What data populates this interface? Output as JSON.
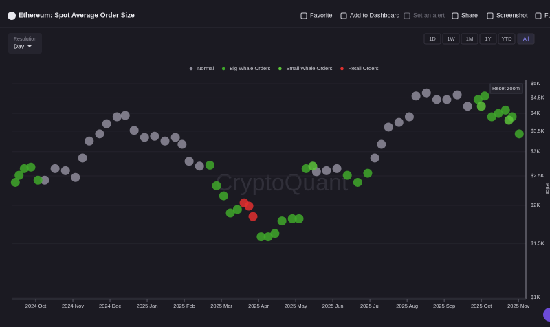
{
  "header": {
    "title": "Ethereum: Spot Average Order Size",
    "actions": [
      "Favorite",
      "Add to Dashboard",
      "Set an alert",
      "Share",
      "Screenshot",
      "Fu"
    ]
  },
  "controls": {
    "resolution_label": "Resolution",
    "resolution": "Day",
    "ranges": [
      "1D",
      "1W",
      "1M",
      "1Y",
      "YTD",
      "All"
    ],
    "active_range": "All",
    "reset_zoom": "Reset zoom"
  },
  "chart_data": {
    "type": "scatter",
    "watermark": "CryptoQuant",
    "y_label": "Price",
    "log_scale": true,
    "xlim": [
      -0.63,
      13.2
    ],
    "xticks": [
      {
        "value": 0,
        "label": "2024 Oct"
      },
      {
        "value": 1,
        "label": "2024 Nov"
      },
      {
        "value": 2,
        "label": "2024 Dec"
      },
      {
        "value": 3,
        "label": "2025 Jan"
      },
      {
        "value": 4,
        "label": "2025 Feb"
      },
      {
        "value": 5,
        "label": "2025 Mar"
      },
      {
        "value": 6,
        "label": "2025 Apr"
      },
      {
        "value": 7,
        "label": "2025 May"
      },
      {
        "value": 8,
        "label": "2025 Jun"
      },
      {
        "value": 9,
        "label": "2025 Jul"
      },
      {
        "value": 10,
        "label": "2025 Aug"
      },
      {
        "value": 11,
        "label": "2025 Sep"
      },
      {
        "value": 12,
        "label": "2025 Oct"
      },
      {
        "value": 13,
        "label": "2025 Nov"
      }
    ],
    "ylim": [
      1000,
      5000
    ],
    "yticks": [
      {
        "value": 1000,
        "label": "$1K"
      },
      {
        "value": 1500,
        "label": "$1.5K"
      },
      {
        "value": 2000,
        "label": "$2K"
      },
      {
        "value": 2500,
        "label": "$2.5K"
      },
      {
        "value": 3000,
        "label": "$3K"
      },
      {
        "value": 3500,
        "label": "$3.5K"
      },
      {
        "value": 4000,
        "label": "$4K"
      },
      {
        "value": 4500,
        "label": "$4.5K"
      },
      {
        "value": 5000,
        "label": "$5K"
      }
    ],
    "series": [
      {
        "name": "Normal",
        "color": "#8e8c9a",
        "x": [
          0.24,
          0.52,
          0.8,
          1.07,
          1.26,
          1.44,
          1.72,
          1.91,
          2.19,
          2.41,
          2.65,
          2.93,
          3.2,
          3.48,
          3.76,
          3.94,
          4.13,
          4.41,
          7.56,
          7.83,
          8.11,
          9.13,
          9.31,
          9.5,
          9.78,
          10.06,
          10.24,
          10.52,
          10.8,
          11.07,
          11.35,
          11.63
        ],
        "values": [
          2420,
          2640,
          2600,
          2470,
          2860,
          3250,
          3430,
          3700,
          3900,
          3940,
          3520,
          3340,
          3370,
          3250,
          3340,
          3170,
          2790,
          2690,
          2580,
          2600,
          2640,
          2860,
          3170,
          3610,
          3740,
          3900,
          4560,
          4670,
          4440,
          4440,
          4600,
          4220
        ]
      },
      {
        "name": "Big Whale Orders",
        "color": "#3fa82a",
        "x": [
          -0.55,
          -0.45,
          -0.31,
          -0.13,
          0.06,
          4.69,
          4.87,
          5.06,
          5.24,
          5.43,
          6.07,
          6.26,
          6.44,
          6.63,
          6.91,
          7.09,
          7.28,
          8.39,
          8.67,
          8.94,
          11.91,
          12.09,
          12.28,
          12.46,
          12.65,
          12.83,
          13.02
        ],
        "values": [
          2380,
          2510,
          2640,
          2670,
          2420,
          2710,
          2320,
          2150,
          1890,
          1940,
          1580,
          1580,
          1620,
          1780,
          1810,
          1810,
          2640,
          2510,
          2380,
          2550,
          4440,
          4560,
          3900,
          4000,
          4100,
          3900,
          3430
        ]
      },
      {
        "name": "Small Whale Orders",
        "color": "#5cc23a",
        "x": [
          7.46,
          12.0,
          12.74
        ],
        "values": [
          2690,
          4220,
          3800
        ]
      },
      {
        "name": "Retail Orders",
        "color": "#e0302f",
        "x": [
          5.61,
          5.74,
          5.85
        ],
        "values": [
          2040,
          1990,
          1840
        ]
      }
    ]
  }
}
